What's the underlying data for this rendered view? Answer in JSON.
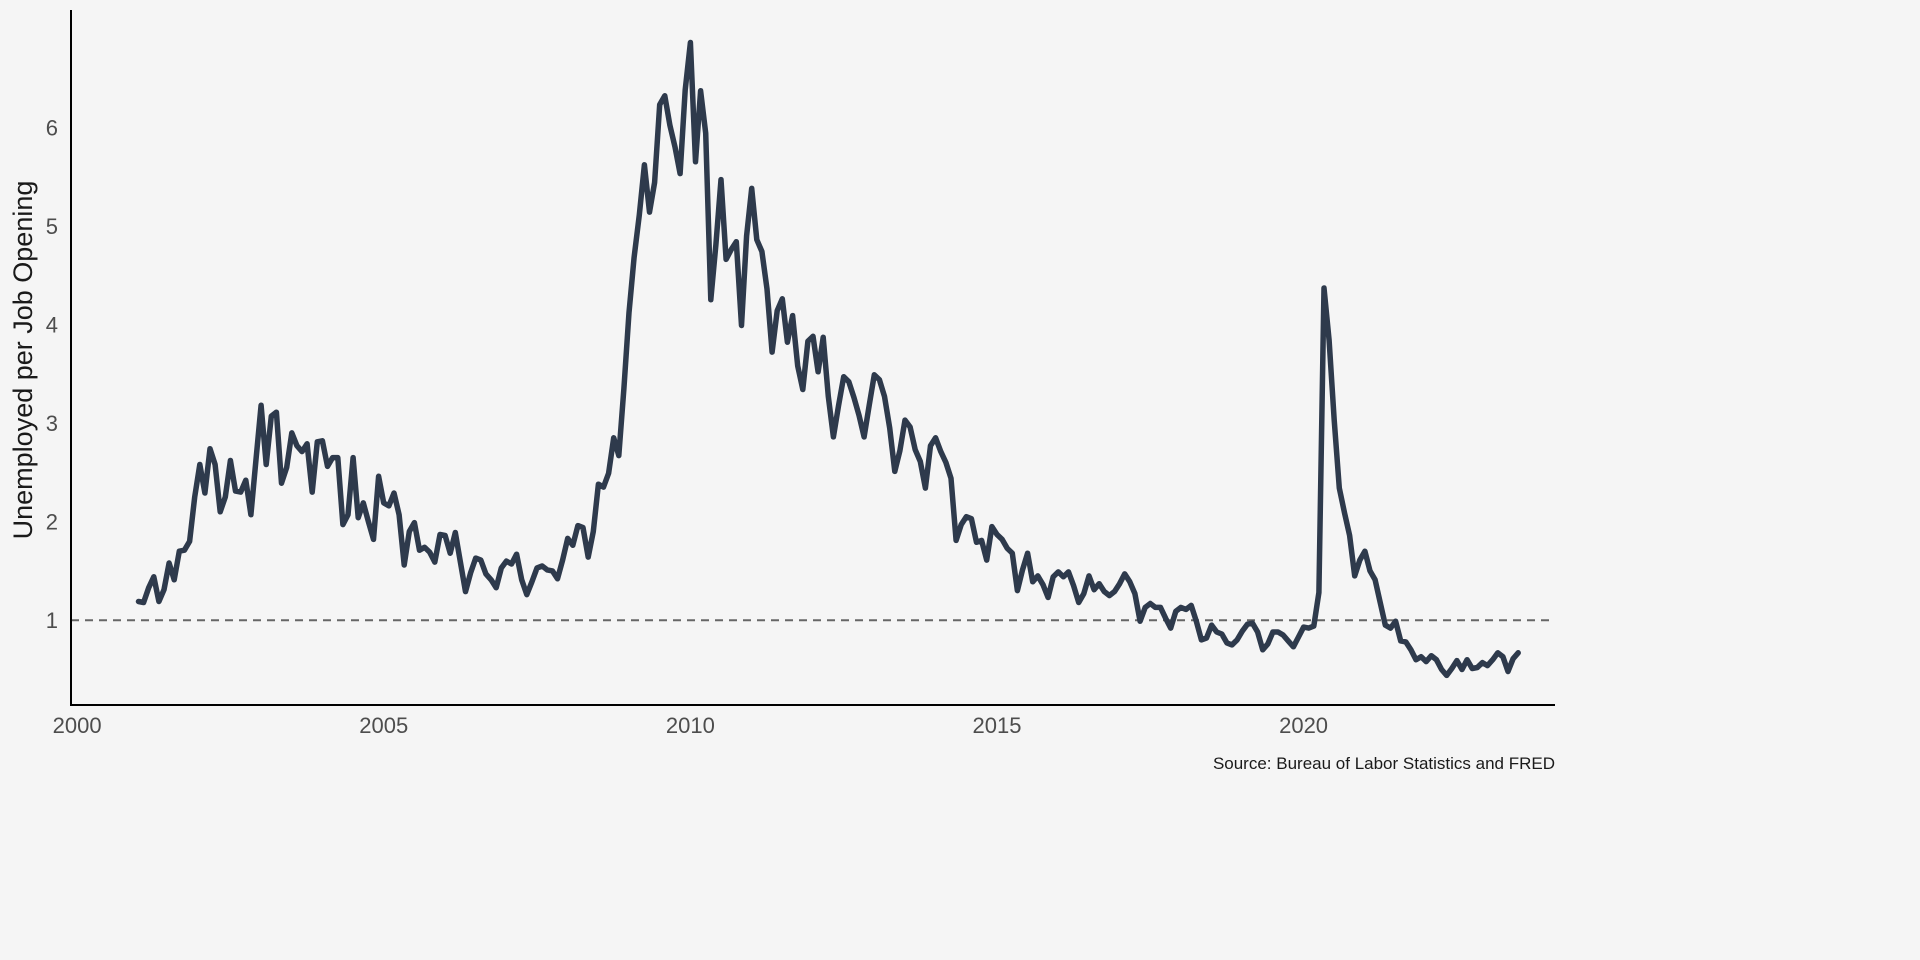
{
  "chart_data": {
    "type": "line",
    "title": "",
    "xlabel": "",
    "ylabel": "Unemployed per Job Opening",
    "source": "Source: Bureau of Labor Statistics and FRED",
    "x_start": "2001-01",
    "frequency": "monthly",
    "xlim": [
      1999.9,
      2024.1
    ],
    "ylim": [
      0.14,
      7.19
    ],
    "x_ticks": [
      2000,
      2005,
      2010,
      2015,
      2020
    ],
    "x_tick_labels": [
      "2000",
      "2005",
      "2010",
      "2015",
      "2020"
    ],
    "y_ticks": [
      1,
      2,
      3,
      4,
      5,
      6
    ],
    "y_tick_labels": [
      "1",
      "2",
      "3",
      "4",
      "5",
      "6"
    ],
    "grid": false,
    "reference_line": {
      "y": 1,
      "style": "dashed",
      "color": "#666666"
    },
    "series": [
      {
        "color": "#2e3a4c",
        "values": [
          1.19,
          1.18,
          1.33,
          1.44,
          1.19,
          1.31,
          1.58,
          1.41,
          1.7,
          1.71,
          1.8,
          2.25,
          2.58,
          2.29,
          2.74,
          2.58,
          2.1,
          2.25,
          2.62,
          2.31,
          2.3,
          2.42,
          2.07,
          2.63,
          3.18,
          2.58,
          3.07,
          3.11,
          2.39,
          2.55,
          2.9,
          2.77,
          2.71,
          2.79,
          2.3,
          2.81,
          2.82,
          2.56,
          2.65,
          2.65,
          1.97,
          2.07,
          2.65,
          2.04,
          2.19,
          2.0,
          1.82,
          2.46,
          2.19,
          2.16,
          2.29,
          2.07,
          1.56,
          1.9,
          1.99,
          1.71,
          1.74,
          1.69,
          1.59,
          1.87,
          1.86,
          1.68,
          1.89,
          1.59,
          1.29,
          1.48,
          1.63,
          1.61,
          1.47,
          1.41,
          1.33,
          1.53,
          1.6,
          1.57,
          1.67,
          1.41,
          1.26,
          1.39,
          1.53,
          1.55,
          1.51,
          1.5,
          1.42,
          1.61,
          1.83,
          1.76,
          1.96,
          1.94,
          1.64,
          1.9,
          2.38,
          2.35,
          2.49,
          2.85,
          2.67,
          3.35,
          4.12,
          4.68,
          5.11,
          5.62,
          5.14,
          5.44,
          6.23,
          6.32,
          6.02,
          5.8,
          5.53,
          6.38,
          6.86,
          5.65,
          6.37,
          5.94,
          4.25,
          4.81,
          5.47,
          4.66,
          4.76,
          4.84,
          3.99,
          4.9,
          5.38,
          4.86,
          4.74,
          4.36,
          3.72,
          4.14,
          4.26,
          3.82,
          4.09,
          3.58,
          3.34,
          3.83,
          3.88,
          3.52,
          3.87,
          3.27,
          2.86,
          3.18,
          3.47,
          3.42,
          3.26,
          3.08,
          2.86,
          3.18,
          3.49,
          3.44,
          3.27,
          2.95,
          2.51,
          2.72,
          3.03,
          2.96,
          2.73,
          2.61,
          2.34,
          2.77,
          2.85,
          2.71,
          2.6,
          2.44,
          1.81,
          1.97,
          2.05,
          2.03,
          1.79,
          1.81,
          1.61,
          1.95,
          1.87,
          1.82,
          1.73,
          1.68,
          1.3,
          1.51,
          1.68,
          1.39,
          1.45,
          1.36,
          1.23,
          1.44,
          1.49,
          1.44,
          1.49,
          1.35,
          1.18,
          1.27,
          1.45,
          1.31,
          1.37,
          1.29,
          1.25,
          1.29,
          1.37,
          1.47,
          1.39,
          1.27,
          0.99,
          1.13,
          1.17,
          1.13,
          1.13,
          1.02,
          0.92,
          1.09,
          1.13,
          1.11,
          1.15,
          0.99,
          0.8,
          0.82,
          0.95,
          0.88,
          0.86,
          0.77,
          0.75,
          0.8,
          0.89,
          0.96,
          0.97,
          0.88,
          0.7,
          0.76,
          0.88,
          0.88,
          0.85,
          0.79,
          0.73,
          0.83,
          0.93,
          0.92,
          0.94,
          1.28,
          4.37,
          3.84,
          3.03,
          2.34,
          2.09,
          1.86,
          1.45,
          1.61,
          1.7,
          1.5,
          1.41,
          1.18,
          0.95,
          0.92,
          0.99,
          0.79,
          0.78,
          0.7,
          0.6,
          0.63,
          0.58,
          0.64,
          0.6,
          0.5,
          0.44,
          0.51,
          0.59,
          0.5,
          0.6,
          0.51,
          0.52,
          0.57,
          0.54,
          0.6,
          0.67,
          0.63,
          0.48,
          0.61,
          0.67
        ]
      }
    ]
  }
}
